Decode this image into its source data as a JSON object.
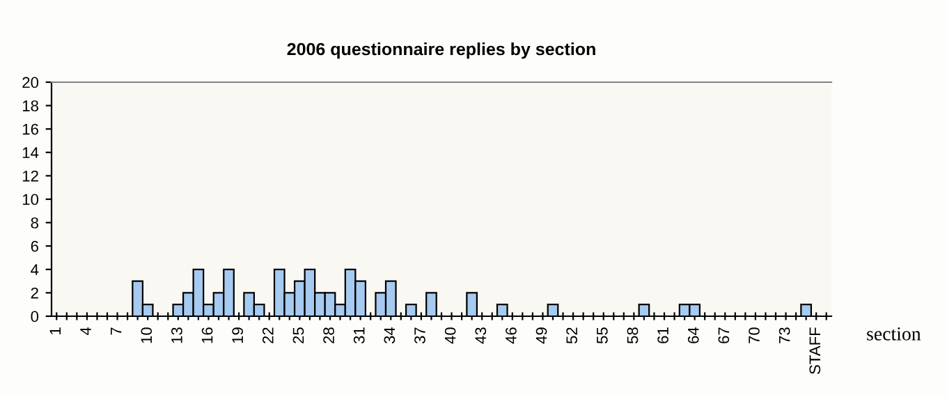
{
  "chart_data": {
    "type": "bar",
    "title": "2006 questionnaire replies by section",
    "xlabel": "section",
    "categories": [
      "1",
      null,
      null,
      "4",
      null,
      null,
      "7",
      null,
      null,
      "10",
      null,
      null,
      "13",
      null,
      null,
      "16",
      null,
      null,
      "19",
      null,
      null,
      "22",
      null,
      null,
      "25",
      null,
      null,
      "28",
      null,
      null,
      "31",
      null,
      null,
      "34",
      null,
      null,
      "37",
      null,
      null,
      "40",
      null,
      null,
      "43",
      null,
      null,
      "46",
      null,
      null,
      "49",
      null,
      null,
      "52",
      null,
      null,
      "55",
      null,
      null,
      "58",
      null,
      null,
      "61",
      null,
      null,
      "64",
      null,
      null,
      "67",
      null,
      null,
      "70",
      null,
      null,
      "73",
      null,
      null,
      "STAFF",
      null
    ],
    "values": [
      0,
      0,
      0,
      0,
      0,
      0,
      0,
      0,
      3,
      1,
      0,
      0,
      1,
      2,
      4,
      1,
      2,
      4,
      0,
      2,
      1,
      0,
      4,
      2,
      3,
      4,
      2,
      2,
      1,
      4,
      3,
      0,
      2,
      3,
      0,
      1,
      0,
      2,
      0,
      0,
      0,
      2,
      0,
      0,
      1,
      0,
      0,
      0,
      0,
      1,
      0,
      0,
      0,
      0,
      0,
      0,
      0,
      0,
      1,
      0,
      0,
      0,
      1,
      1,
      0,
      0,
      0,
      0,
      0,
      0,
      0,
      0,
      0,
      0,
      1,
      0,
      0
    ],
    "color": "#a6caf0",
    "ylim": [
      0,
      20
    ],
    "yticks": [
      0,
      2,
      4,
      6,
      8,
      10,
      12,
      14,
      16,
      18,
      20
    ],
    "legend": false
  }
}
